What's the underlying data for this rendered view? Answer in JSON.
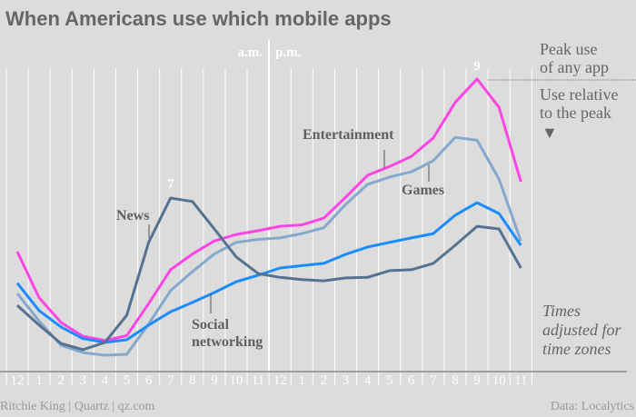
{
  "chart_data": {
    "type": "line",
    "title": "When Americans use which mobile apps",
    "x": [
      "12",
      "1",
      "2",
      "3",
      "4",
      "5",
      "6",
      "7",
      "8",
      "9",
      "10",
      "11",
      "12",
      "1",
      "2",
      "3",
      "4",
      "5",
      "6",
      "7",
      "8",
      "9",
      "10",
      "11"
    ],
    "period_labels": {
      "am": "a.m.",
      "pm": "p.m."
    },
    "xlabel": "",
    "ylabel": "Use relative to the peak",
    "ylim": [
      0,
      100
    ],
    "grid": "vertical",
    "series": [
      {
        "name": "Entertainment",
        "color": "#ff44e6",
        "values": [
          40.8,
          25,
          16.5,
          11.8,
          10.3,
          12,
          23,
          34.6,
          40,
          44.5,
          46.7,
          48,
          49.5,
          50,
          52.3,
          59.5,
          67,
          70,
          73.5,
          79.8,
          92,
          100,
          90.3,
          64.8
        ]
      },
      {
        "name": "Games",
        "color": "#85a9cc",
        "values": [
          26.5,
          17,
          8.7,
          6.2,
          5.3,
          5.6,
          16,
          27.4,
          34,
          40,
          44,
          45,
          45.5,
          47,
          49,
          57,
          63.9,
          66.4,
          68.2,
          72,
          80,
          79,
          65.7,
          44.5
        ]
      },
      {
        "name": "Social networking",
        "color": "#1a8cff",
        "values": [
          30,
          20.6,
          15,
          11,
          9.7,
          10.6,
          15.6,
          20.2,
          23.4,
          26.8,
          30.5,
          32.7,
          35.2,
          36,
          36.8,
          39.9,
          42.4,
          44,
          45.5,
          47,
          53.3,
          57.6,
          53.9,
          43
        ]
      },
      {
        "name": "News",
        "color": "#557390",
        "values": [
          22.4,
          15.6,
          9.3,
          7.2,
          9.7,
          19,
          44,
          59.2,
          58,
          48.6,
          39,
          33.3,
          32,
          31.2,
          30.8,
          31.8,
          32,
          34.3,
          34.6,
          36.8,
          43,
          49.5,
          48.6,
          35.2
        ]
      }
    ],
    "annotations": {
      "news_peak": "7",
      "entertainment_peak": "9",
      "news_label": "News",
      "social_label_1": "Social",
      "social_label_2": "networking",
      "entertainment_label": "Entertainment",
      "games_label": "Games"
    },
    "side_notes": {
      "peak_1": "Peak use",
      "peak_2": "of any app",
      "rel_1": "Use relative",
      "rel_2": "to the peak",
      "arrow": "▼",
      "tz_1": "Times",
      "tz_2": "adjusted for",
      "tz_3": "time zones"
    }
  },
  "footer": {
    "credit": "Ritchie King | Quartz | qz.com",
    "source": "Data: Localytics"
  }
}
